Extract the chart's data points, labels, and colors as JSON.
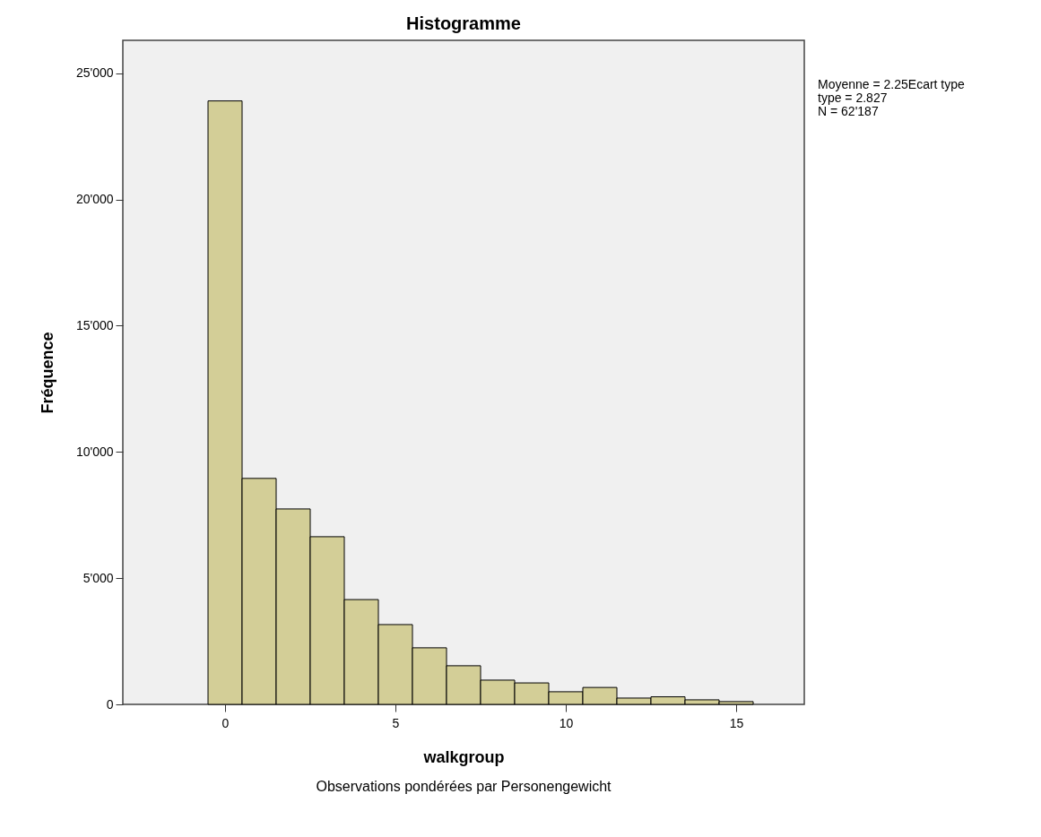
{
  "chart_data": {
    "type": "histogram",
    "title": "Histogramme",
    "xlabel": "walkgroup",
    "ylabel": "Fréquence",
    "annotations": [
      "Moyenne = 2.25Ecart type",
      " type = 2.827",
      "N = 62'187",
      "Observations pondérées par Personengewicht"
    ],
    "bins": [
      -0.5,
      0.5,
      1.5,
      2.5,
      3.5,
      4.5,
      5.5,
      6.5,
      7.5,
      8.5,
      9.5,
      10.5,
      11.5,
      12.5,
      13.5,
      14.5,
      15.5
    ],
    "values": [
      23900,
      8950,
      7740,
      6640,
      4150,
      3160,
      2240,
      1530,
      960,
      850,
      500,
      670,
      250,
      300,
      180,
      110
    ],
    "color": "#d3ce97",
    "xlim": [
      -3,
      17
    ],
    "xticks": [
      0,
      5,
      10,
      15
    ],
    "ylim": [
      0,
      26300
    ],
    "yticks": [
      0,
      {
        "value": 5000,
        "label": "5'000"
      },
      {
        "value": 10000,
        "label": "10'000"
      },
      {
        "value": 15000,
        "label": "15'000"
      },
      {
        "value": 20000,
        "label": "20'000"
      },
      {
        "value": 25000,
        "label": "25'000"
      }
    ]
  }
}
